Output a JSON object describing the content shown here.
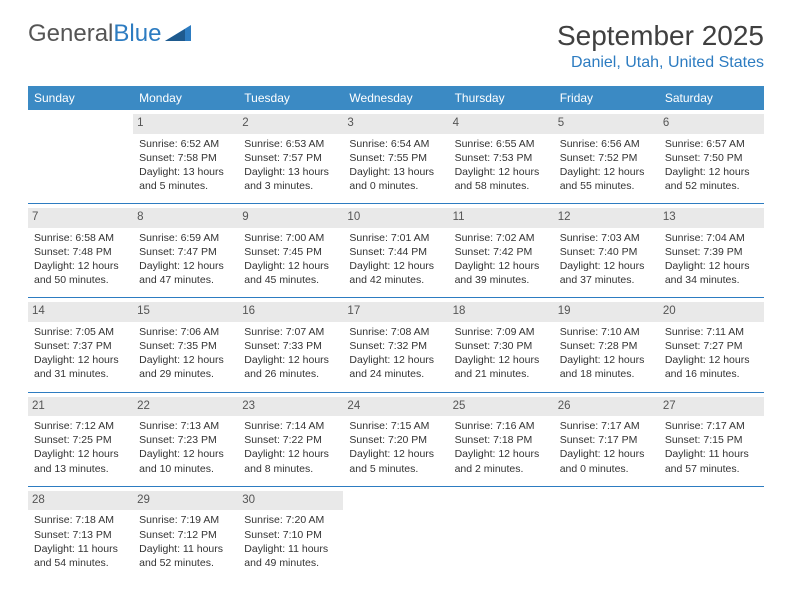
{
  "logo": {
    "text1": "General",
    "text2": "Blue"
  },
  "title": "September 2025",
  "location": "Daniel, Utah, United States",
  "weekdays": [
    "Sunday",
    "Monday",
    "Tuesday",
    "Wednesday",
    "Thursday",
    "Friday",
    "Saturday"
  ],
  "colors": {
    "header_bg": "#3b8ac4",
    "accent": "#2d7cc1",
    "daynum_bg": "#e9e9e9",
    "text": "#333333",
    "background": "#ffffff"
  },
  "typography": {
    "title_fontsize": 28,
    "location_fontsize": 16,
    "dayhead_fontsize": 12,
    "cell_fontsize": 10.5,
    "daynum_fontsize": 11.5
  },
  "layout": {
    "columns": 7,
    "rows": 5,
    "first_day_column": 1
  },
  "days": [
    {
      "n": "",
      "sunrise": "",
      "sunset": "",
      "daylight1": "",
      "daylight2": ""
    },
    {
      "n": "1",
      "sunrise": "Sunrise: 6:52 AM",
      "sunset": "Sunset: 7:58 PM",
      "daylight1": "Daylight: 13 hours",
      "daylight2": "and 5 minutes."
    },
    {
      "n": "2",
      "sunrise": "Sunrise: 6:53 AM",
      "sunset": "Sunset: 7:57 PM",
      "daylight1": "Daylight: 13 hours",
      "daylight2": "and 3 minutes."
    },
    {
      "n": "3",
      "sunrise": "Sunrise: 6:54 AM",
      "sunset": "Sunset: 7:55 PM",
      "daylight1": "Daylight: 13 hours",
      "daylight2": "and 0 minutes."
    },
    {
      "n": "4",
      "sunrise": "Sunrise: 6:55 AM",
      "sunset": "Sunset: 7:53 PM",
      "daylight1": "Daylight: 12 hours",
      "daylight2": "and 58 minutes."
    },
    {
      "n": "5",
      "sunrise": "Sunrise: 6:56 AM",
      "sunset": "Sunset: 7:52 PM",
      "daylight1": "Daylight: 12 hours",
      "daylight2": "and 55 minutes."
    },
    {
      "n": "6",
      "sunrise": "Sunrise: 6:57 AM",
      "sunset": "Sunset: 7:50 PM",
      "daylight1": "Daylight: 12 hours",
      "daylight2": "and 52 minutes."
    },
    {
      "n": "7",
      "sunrise": "Sunrise: 6:58 AM",
      "sunset": "Sunset: 7:48 PM",
      "daylight1": "Daylight: 12 hours",
      "daylight2": "and 50 minutes."
    },
    {
      "n": "8",
      "sunrise": "Sunrise: 6:59 AM",
      "sunset": "Sunset: 7:47 PM",
      "daylight1": "Daylight: 12 hours",
      "daylight2": "and 47 minutes."
    },
    {
      "n": "9",
      "sunrise": "Sunrise: 7:00 AM",
      "sunset": "Sunset: 7:45 PM",
      "daylight1": "Daylight: 12 hours",
      "daylight2": "and 45 minutes."
    },
    {
      "n": "10",
      "sunrise": "Sunrise: 7:01 AM",
      "sunset": "Sunset: 7:44 PM",
      "daylight1": "Daylight: 12 hours",
      "daylight2": "and 42 minutes."
    },
    {
      "n": "11",
      "sunrise": "Sunrise: 7:02 AM",
      "sunset": "Sunset: 7:42 PM",
      "daylight1": "Daylight: 12 hours",
      "daylight2": "and 39 minutes."
    },
    {
      "n": "12",
      "sunrise": "Sunrise: 7:03 AM",
      "sunset": "Sunset: 7:40 PM",
      "daylight1": "Daylight: 12 hours",
      "daylight2": "and 37 minutes."
    },
    {
      "n": "13",
      "sunrise": "Sunrise: 7:04 AM",
      "sunset": "Sunset: 7:39 PM",
      "daylight1": "Daylight: 12 hours",
      "daylight2": "and 34 minutes."
    },
    {
      "n": "14",
      "sunrise": "Sunrise: 7:05 AM",
      "sunset": "Sunset: 7:37 PM",
      "daylight1": "Daylight: 12 hours",
      "daylight2": "and 31 minutes."
    },
    {
      "n": "15",
      "sunrise": "Sunrise: 7:06 AM",
      "sunset": "Sunset: 7:35 PM",
      "daylight1": "Daylight: 12 hours",
      "daylight2": "and 29 minutes."
    },
    {
      "n": "16",
      "sunrise": "Sunrise: 7:07 AM",
      "sunset": "Sunset: 7:33 PM",
      "daylight1": "Daylight: 12 hours",
      "daylight2": "and 26 minutes."
    },
    {
      "n": "17",
      "sunrise": "Sunrise: 7:08 AM",
      "sunset": "Sunset: 7:32 PM",
      "daylight1": "Daylight: 12 hours",
      "daylight2": "and 24 minutes."
    },
    {
      "n": "18",
      "sunrise": "Sunrise: 7:09 AM",
      "sunset": "Sunset: 7:30 PM",
      "daylight1": "Daylight: 12 hours",
      "daylight2": "and 21 minutes."
    },
    {
      "n": "19",
      "sunrise": "Sunrise: 7:10 AM",
      "sunset": "Sunset: 7:28 PM",
      "daylight1": "Daylight: 12 hours",
      "daylight2": "and 18 minutes."
    },
    {
      "n": "20",
      "sunrise": "Sunrise: 7:11 AM",
      "sunset": "Sunset: 7:27 PM",
      "daylight1": "Daylight: 12 hours",
      "daylight2": "and 16 minutes."
    },
    {
      "n": "21",
      "sunrise": "Sunrise: 7:12 AM",
      "sunset": "Sunset: 7:25 PM",
      "daylight1": "Daylight: 12 hours",
      "daylight2": "and 13 minutes."
    },
    {
      "n": "22",
      "sunrise": "Sunrise: 7:13 AM",
      "sunset": "Sunset: 7:23 PM",
      "daylight1": "Daylight: 12 hours",
      "daylight2": "and 10 minutes."
    },
    {
      "n": "23",
      "sunrise": "Sunrise: 7:14 AM",
      "sunset": "Sunset: 7:22 PM",
      "daylight1": "Daylight: 12 hours",
      "daylight2": "and 8 minutes."
    },
    {
      "n": "24",
      "sunrise": "Sunrise: 7:15 AM",
      "sunset": "Sunset: 7:20 PM",
      "daylight1": "Daylight: 12 hours",
      "daylight2": "and 5 minutes."
    },
    {
      "n": "25",
      "sunrise": "Sunrise: 7:16 AM",
      "sunset": "Sunset: 7:18 PM",
      "daylight1": "Daylight: 12 hours",
      "daylight2": "and 2 minutes."
    },
    {
      "n": "26",
      "sunrise": "Sunrise: 7:17 AM",
      "sunset": "Sunset: 7:17 PM",
      "daylight1": "Daylight: 12 hours",
      "daylight2": "and 0 minutes."
    },
    {
      "n": "27",
      "sunrise": "Sunrise: 7:17 AM",
      "sunset": "Sunset: 7:15 PM",
      "daylight1": "Daylight: 11 hours",
      "daylight2": "and 57 minutes."
    },
    {
      "n": "28",
      "sunrise": "Sunrise: 7:18 AM",
      "sunset": "Sunset: 7:13 PM",
      "daylight1": "Daylight: 11 hours",
      "daylight2": "and 54 minutes."
    },
    {
      "n": "29",
      "sunrise": "Sunrise: 7:19 AM",
      "sunset": "Sunset: 7:12 PM",
      "daylight1": "Daylight: 11 hours",
      "daylight2": "and 52 minutes."
    },
    {
      "n": "30",
      "sunrise": "Sunrise: 7:20 AM",
      "sunset": "Sunset: 7:10 PM",
      "daylight1": "Daylight: 11 hours",
      "daylight2": "and 49 minutes."
    },
    {
      "n": "",
      "sunrise": "",
      "sunset": "",
      "daylight1": "",
      "daylight2": ""
    },
    {
      "n": "",
      "sunrise": "",
      "sunset": "",
      "daylight1": "",
      "daylight2": ""
    },
    {
      "n": "",
      "sunrise": "",
      "sunset": "",
      "daylight1": "",
      "daylight2": ""
    },
    {
      "n": "",
      "sunrise": "",
      "sunset": "",
      "daylight1": "",
      "daylight2": ""
    }
  ]
}
